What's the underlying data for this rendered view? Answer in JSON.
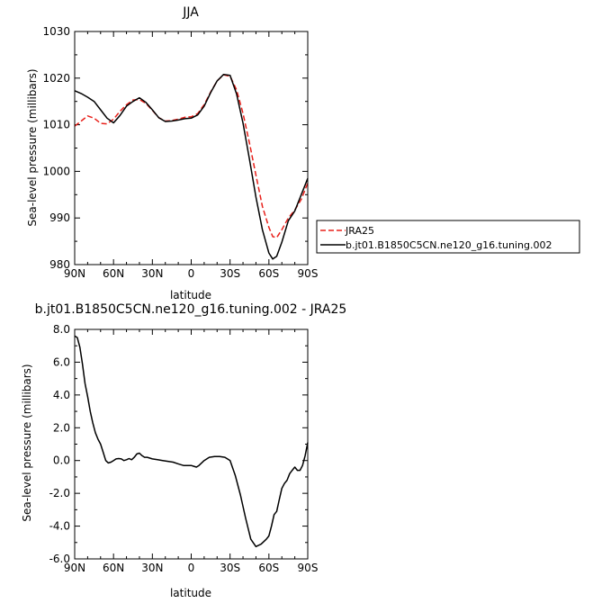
{
  "chart_data": [
    {
      "type": "line",
      "title": "JJA",
      "xlabel": "latitude",
      "ylabel": "Sea-level pressure (millibars)",
      "xlim": [
        90,
        -90
      ],
      "ylim": [
        980,
        1030
      ],
      "xticks": [
        90,
        60,
        30,
        0,
        -30,
        -60,
        -90
      ],
      "xtick_labels": [
        "90N",
        "60N",
        "30N",
        "0",
        "30S",
        "60S",
        "90S"
      ],
      "yticks": [
        980,
        990,
        1000,
        1010,
        1020,
        1030
      ],
      "ytick_labels": [
        "980",
        "990",
        "1000",
        "1010",
        "1020",
        "1030"
      ],
      "legend_position": "right",
      "series": [
        {
          "name": "JRA25",
          "color": "#e8201a",
          "dash": true,
          "x": [
            90,
            85,
            80,
            75,
            70,
            65,
            60,
            55,
            50,
            45,
            40,
            35,
            30,
            25,
            20,
            15,
            10,
            5,
            0,
            -5,
            -10,
            -15,
            -20,
            -25,
            -30,
            -35,
            -40,
            -45,
            -50,
            -55,
            -60,
            -63,
            -66,
            -70,
            -75,
            -80,
            -85,
            -90
          ],
          "y": [
            1009.7,
            1010.8,
            1011.9,
            1011.4,
            1010.3,
            1010.2,
            1011.2,
            1012.9,
            1014.3,
            1015.3,
            1015.4,
            1014.6,
            1013.1,
            1011.5,
            1010.8,
            1010.9,
            1011.2,
            1011.6,
            1011.7,
            1012.4,
            1014.3,
            1017.0,
            1019.4,
            1020.7,
            1020.4,
            1017.5,
            1012.4,
            1006.0,
            999.2,
            992.5,
            988.0,
            986.0,
            985.8,
            987.5,
            990.0,
            991.7,
            994.0,
            997.5
          ]
        },
        {
          "name": "b.jt01.B1850C5CN.ne120_g16.tuning.002",
          "color": "#000000",
          "dash": false,
          "x": [
            90,
            85,
            80,
            75,
            70,
            65,
            60,
            55,
            50,
            45,
            40,
            35,
            30,
            25,
            20,
            15,
            10,
            5,
            0,
            -5,
            -10,
            -15,
            -20,
            -25,
            -30,
            -35,
            -40,
            -45,
            -50,
            -55,
            -60,
            -63,
            -66,
            -70,
            -75,
            -80,
            -85,
            -90
          ],
          "y": [
            1017.3,
            1016.7,
            1015.9,
            1015.0,
            1013.2,
            1011.4,
            1010.4,
            1012.0,
            1014.0,
            1015.0,
            1015.8,
            1014.8,
            1013.2,
            1011.5,
            1010.7,
            1010.8,
            1011.0,
            1011.3,
            1011.4,
            1012.1,
            1014.0,
            1016.9,
            1019.4,
            1020.8,
            1020.6,
            1016.6,
            1010.3,
            1002.5,
            994.5,
            987.5,
            982.5,
            981.2,
            981.8,
            984.8,
            989.4,
            991.5,
            995.0,
            998.5
          ]
        }
      ]
    },
    {
      "type": "line",
      "title": "b.jt01.B1850C5CN.ne120_g16.tuning.002 - JRA25",
      "xlabel": "latitude",
      "ylabel": "Sea-level pressure (millibars)",
      "xlim": [
        90,
        -90
      ],
      "ylim": [
        -6,
        8
      ],
      "xticks": [
        90,
        60,
        30,
        0,
        -30,
        -60,
        -90
      ],
      "xtick_labels": [
        "90N",
        "60N",
        "30N",
        "0",
        "30S",
        "60S",
        "90S"
      ],
      "yticks": [
        -6,
        -4,
        -2,
        0,
        2,
        4,
        6,
        8
      ],
      "ytick_labels": [
        "-6.0",
        "-4.0",
        "-2.0",
        "0.0",
        "2.0",
        "4.0",
        "6.0",
        "8.0"
      ],
      "series": [
        {
          "color": "#000000",
          "dash": false,
          "x": [
            90,
            88,
            86,
            84,
            82,
            80,
            78,
            76,
            74,
            72,
            70,
            68,
            66,
            64,
            62,
            60,
            58,
            56,
            54,
            52,
            50,
            48,
            46,
            44,
            42,
            40,
            38,
            36,
            34,
            32,
            30,
            26,
            22,
            18,
            14,
            10,
            6,
            2,
            0,
            -2,
            -4,
            -6,
            -10,
            -14,
            -18,
            -22,
            -26,
            -30,
            -34,
            -38,
            -42,
            -46,
            -50,
            -54,
            -58,
            -60,
            -62,
            -64,
            -66,
            -68,
            -70,
            -72,
            -74,
            -76,
            -78,
            -80,
            -82,
            -84,
            -86,
            -88,
            -90
          ],
          "y": [
            7.6,
            7.5,
            6.9,
            5.9,
            4.7,
            3.9,
            3.0,
            2.3,
            1.7,
            1.3,
            1.0,
            0.5,
            0.0,
            -0.15,
            -0.1,
            0.0,
            0.1,
            0.12,
            0.1,
            0.0,
            0.05,
            0.12,
            0.05,
            0.2,
            0.4,
            0.45,
            0.3,
            0.2,
            0.2,
            0.15,
            0.1,
            0.05,
            0.0,
            -0.05,
            -0.1,
            -0.2,
            -0.3,
            -0.3,
            -0.3,
            -0.35,
            -0.4,
            -0.3,
            0.0,
            0.2,
            0.25,
            0.25,
            0.2,
            0.0,
            -0.9,
            -2.1,
            -3.5,
            -4.8,
            -5.25,
            -5.1,
            -4.8,
            -4.6,
            -4.0,
            -3.3,
            -3.1,
            -2.4,
            -1.7,
            -1.4,
            -1.2,
            -0.8,
            -0.6,
            -0.4,
            -0.6,
            -0.6,
            -0.3,
            0.3,
            1.1
          ]
        }
      ]
    }
  ]
}
